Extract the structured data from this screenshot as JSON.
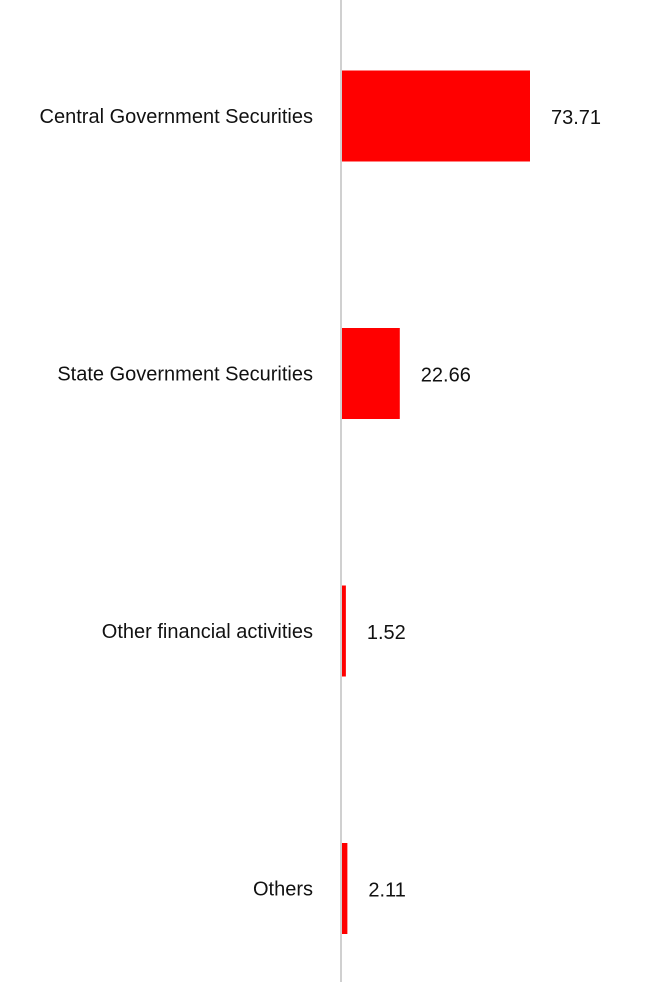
{
  "chart_data": {
    "type": "bar",
    "orientation": "horizontal",
    "categories": [
      "Central Government Securities",
      "State Government Securities",
      "Other financial activities",
      "Others"
    ],
    "values": [
      73.71,
      22.66,
      1.52,
      2.11
    ],
    "value_labels": [
      "73.71",
      "22.66",
      "1.52",
      "2.11"
    ],
    "title": "",
    "xlabel": "",
    "ylabel": "",
    "xlim": [
      0,
      100
    ],
    "grid": false,
    "legend": "none",
    "colors": {
      "bar": "#ff0000",
      "axis": "#d0d0d0",
      "text": "#111111"
    }
  }
}
